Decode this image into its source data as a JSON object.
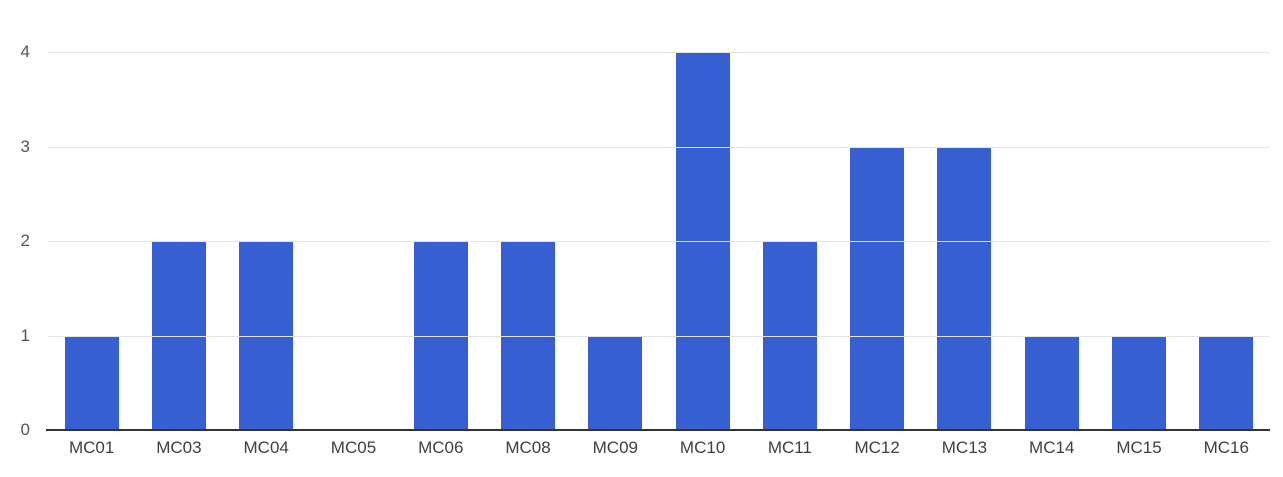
{
  "colors": {
    "bar": "#365fd2",
    "gridline": "#e3e3e3",
    "baseline": "#333333",
    "y_label": "#565656",
    "x_label": "#404040"
  },
  "chart_data": {
    "type": "bar",
    "title": "",
    "xlabel": "",
    "ylabel": "",
    "categories": [
      "MC01",
      "MC03",
      "MC04",
      "MC05",
      "MC06",
      "MC08",
      "MC09",
      "MC10",
      "MC11",
      "MC12",
      "MC13",
      "MC14",
      "MC15",
      "MC16"
    ],
    "values": [
      1,
      2,
      2,
      0,
      2,
      2,
      1,
      4,
      2,
      3,
      3,
      1,
      1,
      1
    ],
    "ylim": [
      0,
      4
    ],
    "yticks": [
      0,
      1,
      2,
      3,
      4
    ],
    "grid": true,
    "legend": "none"
  }
}
